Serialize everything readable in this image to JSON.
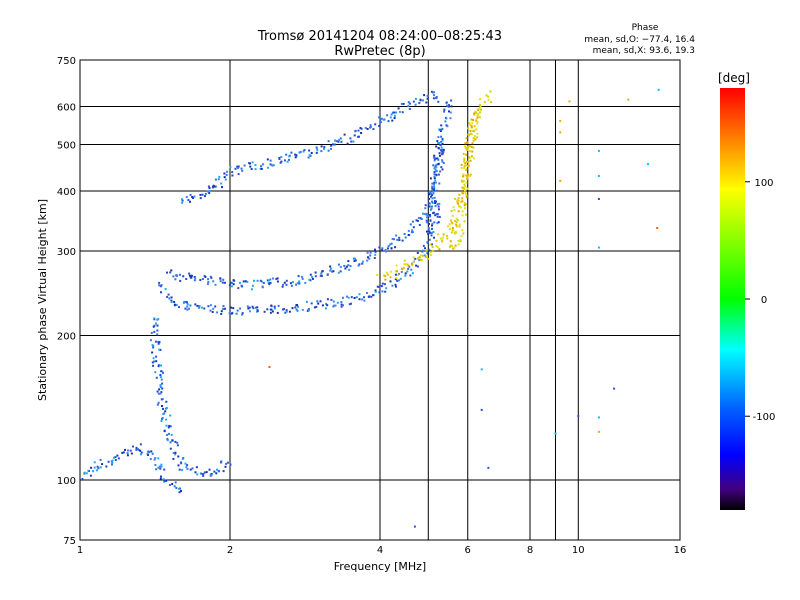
{
  "chart_data": {
    "type": "scatter",
    "title": "Tromsø 20141204 08:24:00–08:25:43",
    "subtitle": "RwPretec (8p)",
    "xlabel": "Frequency [MHz]",
    "ylabel": "Stationary phase Virtual Height [km]",
    "xscale": "log",
    "yscale": "log",
    "xlim": [
      1,
      16
    ],
    "ylim": [
      75,
      750
    ],
    "xticks": [
      1,
      2,
      4,
      6,
      8,
      10,
      16
    ],
    "xgrid": [
      2,
      4,
      5,
      6,
      8,
      9,
      10,
      16
    ],
    "yticks": [
      75,
      100,
      200,
      300,
      400,
      500,
      600,
      750
    ],
    "grid": true,
    "phase_stats": {
      "title": "Phase",
      "line_o": "mean, sd,O: −77.4, 16.4",
      "line_x": "mean, sd,X:  93.6, 19.3"
    },
    "colorbar": {
      "label": "[deg]",
      "range": [
        -180,
        180
      ],
      "ticks": [
        100,
        0,
        -100
      ],
      "colors": [
        "#ff0000",
        "#ffa000",
        "#ffff00",
        "#00ff00",
        "#00ffff",
        "#0060ff",
        "#0000ff",
        "#400080",
        "#000000"
      ]
    },
    "series": [
      {
        "mode": "O",
        "color": "#2a50d8",
        "traces": [
          {
            "x": [
              1.6,
              1.75,
              2.0,
              2.5,
              3.0,
              3.5,
              4.0,
              4.5,
              4.9,
              5.1,
              5.2
            ],
            "y": [
              385,
              392,
              440,
              465,
              490,
              520,
              560,
              600,
              630,
              640,
              620
            ]
          },
          {
            "x": [
              1.45,
              1.5,
              1.6,
              1.8,
              2.0,
              2.5,
              3.0,
              3.5,
              4.0,
              4.5,
              5.0,
              5.2
            ],
            "y": [
              255,
              240,
              232,
              228,
              226,
              228,
              232,
              238,
              250,
              270,
              310,
              380
            ]
          },
          {
            "x": [
              1.5,
              1.8,
              2.2,
              2.8,
              3.4,
              4.0,
              4.6,
              5.0,
              5.2,
              5.3
            ],
            "y": [
              270,
              262,
              256,
              262,
              280,
              300,
              330,
              370,
              430,
              520
            ]
          },
          {
            "x": [
              1.4,
              1.42,
              1.45,
              1.5,
              1.55,
              1.6,
              1.7,
              1.8,
              2.0
            ],
            "y": [
              220,
              180,
              150,
              125,
              115,
              108,
              105,
              103,
              110
            ]
          },
          {
            "x": [
              1.0,
              1.1,
              1.2,
              1.3,
              1.4,
              1.5,
              1.6
            ],
            "y": [
              103,
              108,
              113,
              117,
              112,
              100,
              96
            ]
          },
          {
            "x": [
              5.0,
              5.05,
              5.1,
              5.15,
              5.2,
              5.3,
              5.4,
              5.5
            ],
            "y": [
              320,
              360,
              400,
              440,
              480,
              520,
              570,
              630
            ]
          }
        ]
      },
      {
        "mode": "X",
        "color": "#e8e000",
        "traces": [
          {
            "x": [
              4.0,
              4.3,
              4.6,
              5.0,
              5.3,
              5.6,
              5.8,
              5.9,
              6.0,
              6.2,
              6.6
            ],
            "y": [
              265,
              272,
              285,
              298,
              320,
              350,
              390,
              440,
              500,
              580,
              640
            ]
          },
          {
            "x": [
              5.5,
              5.7,
              5.8,
              5.9,
              6.0,
              6.1,
              6.3
            ],
            "y": [
              300,
              320,
              360,
              400,
              460,
              520,
              600
            ]
          }
        ]
      }
    ],
    "outliers": [
      {
        "x": 9.2,
        "y": 530,
        "color": "#e8b000"
      },
      {
        "x": 9.2,
        "y": 560,
        "color": "#e8b000"
      },
      {
        "x": 9.2,
        "y": 420,
        "color": "#ffa000"
      },
      {
        "x": 9.6,
        "y": 615,
        "color": "#e8b000"
      },
      {
        "x": 11.0,
        "y": 485,
        "color": "#00c0ff"
      },
      {
        "x": 11.0,
        "y": 430,
        "color": "#00c0ff"
      },
      {
        "x": 11.0,
        "y": 385,
        "color": "#2a50d8"
      },
      {
        "x": 11.0,
        "y": 305,
        "color": "#00c0ff"
      },
      {
        "x": 11.0,
        "y": 135,
        "color": "#00c0ff"
      },
      {
        "x": 11.0,
        "y": 126,
        "color": "#e8b000"
      },
      {
        "x": 12.6,
        "y": 620,
        "color": "#e8b000"
      },
      {
        "x": 13.8,
        "y": 455,
        "color": "#00c0ff"
      },
      {
        "x": 14.5,
        "y": 650,
        "color": "#00c0ff"
      },
      {
        "x": 14.4,
        "y": 335,
        "color": "#ff6000"
      },
      {
        "x": 10.0,
        "y": 136,
        "color": "#2a50d8"
      },
      {
        "x": 9.0,
        "y": 125,
        "color": "#00c0ff"
      },
      {
        "x": 11.8,
        "y": 155,
        "color": "#2a50d8"
      },
      {
        "x": 6.4,
        "y": 170,
        "color": "#00c0ff"
      },
      {
        "x": 6.4,
        "y": 140,
        "color": "#2a50d8"
      },
      {
        "x": 6.6,
        "y": 106,
        "color": "#2a50d8"
      },
      {
        "x": 4.7,
        "y": 80,
        "color": "#2a50d8"
      },
      {
        "x": 2.4,
        "y": 172,
        "color": "#ff6000"
      }
    ]
  }
}
